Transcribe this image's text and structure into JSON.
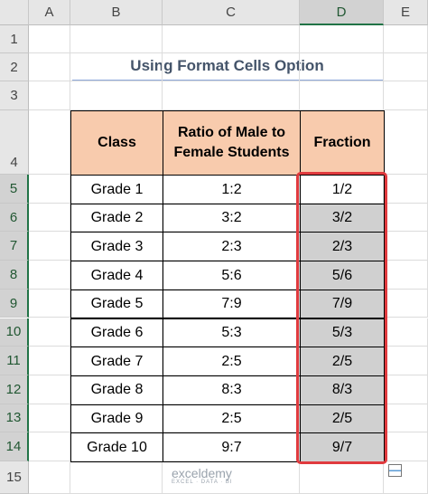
{
  "column_headers": [
    "A",
    "B",
    "C",
    "D",
    "E"
  ],
  "row_numbers": [
    "1",
    "2",
    "3",
    "4",
    "5",
    "6",
    "7",
    "8",
    "9",
    "10",
    "11",
    "12",
    "13",
    "14",
    "15"
  ],
  "title": "Using Format Cells Option",
  "table": {
    "header": [
      "Class",
      "Ratio of Male to Female Students",
      "Fraction"
    ],
    "rows": [
      [
        "Grade 1",
        "1:2",
        "1/2"
      ],
      [
        "Grade 2",
        "3:2",
        "3/2"
      ],
      [
        "Grade 3",
        "2:3",
        "2/3"
      ],
      [
        "Grade 4",
        "5:6",
        "5/6"
      ],
      [
        "Grade 5",
        "7:9",
        "7/9"
      ],
      [
        "Grade 6",
        "5:3",
        "5/3"
      ],
      [
        "Grade 7",
        "2:5",
        "2/5"
      ],
      [
        "Grade 8",
        "8:3",
        "8/3"
      ],
      [
        "Grade 9",
        "2:5",
        "2/5"
      ],
      [
        "Grade 10",
        "9:7",
        "9/7"
      ]
    ]
  },
  "watermark": {
    "brand": "exceldemy",
    "tagline": "EXCEL · DATA · BI"
  }
}
